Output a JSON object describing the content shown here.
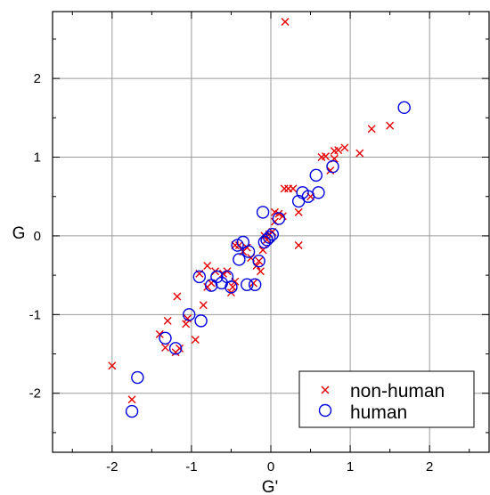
{
  "chart_data": {
    "type": "scatter",
    "xlabel": "G'",
    "ylabel": "G",
    "xlim": [
      -2.75,
      2.75
    ],
    "ylim": [
      -2.75,
      2.85
    ],
    "xticks": [
      -2,
      -1,
      0,
      1,
      2
    ],
    "xtick_labels": [
      "-2",
      "-1",
      "0",
      "1",
      "2"
    ],
    "yticks": [
      -2,
      -1,
      0,
      1,
      2
    ],
    "ytick_labels": [
      "-2",
      "-1",
      "0",
      "1",
      "2"
    ],
    "grid": true,
    "legend_position": "bottom-right",
    "colors": {
      "non_human": "#e60000",
      "human": "#0000dd"
    },
    "series": [
      {
        "name": "non-human",
        "marker": "x",
        "points": [
          [
            0.18,
            2.72
          ],
          [
            1.5,
            1.4
          ],
          [
            1.27,
            1.36
          ],
          [
            1.12,
            1.05
          ],
          [
            0.93,
            1.12
          ],
          [
            0.85,
            1.09
          ],
          [
            0.8,
            1.08
          ],
          [
            0.8,
            0.98
          ],
          [
            0.75,
            0.83
          ],
          [
            0.69,
            1.01
          ],
          [
            0.64,
            1.0
          ],
          [
            0.5,
            0.5
          ],
          [
            0.35,
            0.3
          ],
          [
            0.35,
            -0.12
          ],
          [
            0.28,
            0.6
          ],
          [
            0.22,
            0.6
          ],
          [
            0.17,
            0.6
          ],
          [
            0.15,
            0.25
          ],
          [
            0.1,
            0.28
          ],
          [
            0.05,
            0.3
          ],
          [
            0.05,
            0.18
          ],
          [
            0.02,
            0.05
          ],
          [
            -0.02,
            0.02
          ],
          [
            -0.05,
            -0.05
          ],
          [
            -0.08,
            0.0
          ],
          [
            -0.1,
            -0.18
          ],
          [
            -0.13,
            -0.45
          ],
          [
            -0.15,
            -0.32
          ],
          [
            -0.18,
            -0.38
          ],
          [
            -0.22,
            -0.6
          ],
          [
            -0.25,
            -0.28
          ],
          [
            -0.3,
            -0.15
          ],
          [
            -0.35,
            -0.2
          ],
          [
            -0.4,
            -0.12
          ],
          [
            -0.45,
            -0.12
          ],
          [
            -0.45,
            -0.58
          ],
          [
            -0.48,
            -0.65
          ],
          [
            -0.5,
            -0.72
          ],
          [
            -0.55,
            -0.45
          ],
          [
            -0.6,
            -0.48
          ],
          [
            -0.7,
            -0.45
          ],
          [
            -0.75,
            -0.6
          ],
          [
            -0.8,
            -0.65
          ],
          [
            -0.8,
            -0.38
          ],
          [
            -0.85,
            -0.88
          ],
          [
            -0.9,
            -0.48
          ],
          [
            -0.95,
            -1.32
          ],
          [
            -1.05,
            -1.05
          ],
          [
            -1.07,
            -1.12
          ],
          [
            -1.15,
            -1.43
          ],
          [
            -1.18,
            -0.77
          ],
          [
            -1.2,
            -1.48
          ],
          [
            -1.3,
            -1.08
          ],
          [
            -1.33,
            -1.42
          ],
          [
            -1.4,
            -1.25
          ],
          [
            -1.75,
            -2.08
          ],
          [
            -2.0,
            -1.65
          ]
        ]
      },
      {
        "name": "human",
        "marker": "o",
        "points": [
          [
            1.68,
            1.63
          ],
          [
            0.78,
            0.88
          ],
          [
            0.57,
            0.77
          ],
          [
            0.6,
            0.55
          ],
          [
            0.47,
            0.5
          ],
          [
            0.4,
            0.55
          ],
          [
            0.35,
            0.44
          ],
          [
            0.1,
            0.22
          ],
          [
            -0.1,
            0.3
          ],
          [
            0.02,
            0.02
          ],
          [
            -0.02,
            -0.02
          ],
          [
            -0.05,
            -0.05
          ],
          [
            -0.08,
            -0.08
          ],
          [
            -0.15,
            -0.32
          ],
          [
            -0.2,
            -0.62
          ],
          [
            -0.28,
            -0.2
          ],
          [
            -0.3,
            -0.62
          ],
          [
            -0.35,
            -0.08
          ],
          [
            -0.4,
            -0.3
          ],
          [
            -0.42,
            -0.12
          ],
          [
            -0.5,
            -0.65
          ],
          [
            -0.55,
            -0.52
          ],
          [
            -0.62,
            -0.6
          ],
          [
            -0.68,
            -0.52
          ],
          [
            -0.75,
            -0.63
          ],
          [
            -0.88,
            -1.08
          ],
          [
            -0.9,
            -0.52
          ],
          [
            -1.03,
            -1.0
          ],
          [
            -1.2,
            -1.43
          ],
          [
            -1.33,
            -1.3
          ],
          [
            -1.68,
            -1.8
          ],
          [
            -1.75,
            -2.23
          ]
        ]
      }
    ]
  }
}
